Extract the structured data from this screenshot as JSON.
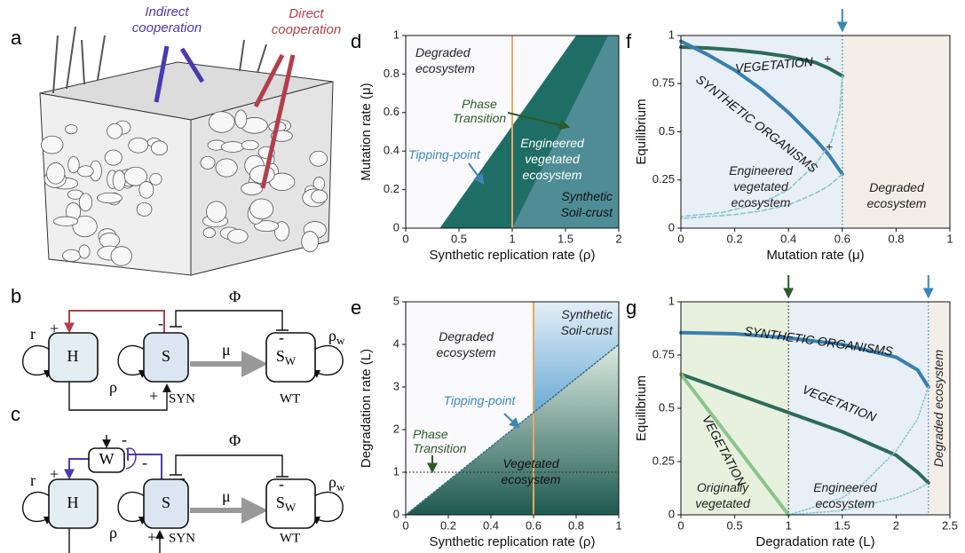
{
  "figure": {
    "a": {
      "label": "a",
      "annotations": [
        {
          "text": [
            "Indirect",
            "cooperation"
          ],
          "color": "#4a3ab0"
        },
        {
          "text": [
            "Direct",
            "cooperation"
          ],
          "color": "#b0404c"
        }
      ]
    },
    "b": {
      "label": "b",
      "nodes": [
        {
          "text": "H"
        },
        {
          "text": "S"
        },
        {
          "text": "S",
          "sub": "W"
        }
      ],
      "labels": {
        "r": "r",
        "rho": "ρ",
        "rho_w": {
          "text": "ρ",
          "sub": "w"
        },
        "phi": "Φ",
        "mu": "μ",
        "syn": "SYN",
        "wt": "WT"
      },
      "signs": [
        "+",
        "+",
        "-",
        "-"
      ]
    },
    "c": {
      "label": "c",
      "nodes": [
        {
          "text": "H"
        },
        {
          "text": "S"
        },
        {
          "text": "S",
          "sub": "W"
        },
        {
          "text": "W"
        }
      ],
      "labels": {
        "r": "r",
        "rho": "ρ",
        "rho_w": {
          "text": "ρ",
          "sub": "w"
        },
        "phi": "Φ",
        "mu": "μ",
        "syn": "SYN",
        "wt": "WT"
      },
      "signs": [
        "+",
        "+",
        "-",
        "-",
        "-",
        "-"
      ]
    }
  },
  "chart_data": [
    {
      "panel": "d",
      "type": "region",
      "xlabel": "Synthetic replication rate (ρ)",
      "ylabel": "Mutation rate (μ)",
      "xlim": [
        0,
        2
      ],
      "ylim": [
        0,
        1
      ],
      "xticks": [
        0,
        0.5,
        1,
        1.5,
        2
      ],
      "yticks": [
        0,
        0.2,
        0.4,
        0.6,
        0.8,
        1
      ],
      "regions": [
        {
          "color": "#1f6e66",
          "x": [
            0.32,
            1.6,
            2,
            2
          ],
          "values": [
            0,
            1,
            1,
            0
          ]
        },
        {
          "color": "#4f8d96",
          "x": [
            1,
            1.9,
            2,
            2
          ],
          "values": [
            0,
            1,
            1,
            0
          ]
        }
      ],
      "vlines": [
        {
          "value": 1,
          "color": "#e9a863",
          "style": "solid"
        }
      ],
      "annotations": [
        {
          "text": [
            "Degraded",
            "ecosystem"
          ],
          "color": "#222222"
        },
        {
          "text": [
            "Phase",
            "Transition"
          ],
          "color": "#2d5a2a"
        },
        {
          "text": [
            "Tipping-point"
          ],
          "color": "#3a86b8"
        },
        {
          "text": [
            "Engineered",
            "vegetated",
            "ecosystem"
          ],
          "color": "#ffffff"
        },
        {
          "text": [
            "Synthetic",
            "Soil-crust"
          ],
          "color": "#111111"
        }
      ]
    },
    {
      "panel": "e",
      "type": "region",
      "xlabel": "Synthetic replication rate (ρ)",
      "ylabel": "Degradation rate (L)",
      "xlim": [
        0,
        1
      ],
      "ylim": [
        0,
        5
      ],
      "xticks": [
        0,
        0.2,
        0.4,
        0.6,
        0.8,
        1
      ],
      "yticks": [
        0,
        1,
        2,
        3,
        4,
        5
      ],
      "regions": [
        {
          "color": "#1d5a50",
          "color2": "#dcebe2",
          "x": [
            0,
            1,
            1
          ],
          "values": [
            0,
            0,
            4
          ]
        },
        {
          "color": "#6aaad4",
          "color2": "#e3eff7",
          "x": [
            0.6,
            1,
            1,
            0.6
          ],
          "values": [
            2.4,
            4,
            5,
            5
          ]
        }
      ],
      "vlines": [
        {
          "value": 0.6,
          "color": "#e9a863",
          "style": "solid"
        }
      ],
      "hlines": [
        {
          "value": 1,
          "color": "#333333",
          "style": "dotted"
        }
      ],
      "series": [
        {
          "color": "#3a6f8f",
          "style": "dotted",
          "x": [
            0,
            1
          ],
          "values": [
            0,
            4
          ]
        }
      ],
      "annotations": [
        {
          "text": [
            "Degraded",
            "ecosystem"
          ],
          "color": "#222222"
        },
        {
          "text": [
            "Synthetic",
            "Soil-crust"
          ],
          "color": "#222222"
        },
        {
          "text": [
            "Tipping-point"
          ],
          "color": "#3a86b8"
        },
        {
          "text": [
            "Phase",
            "Transition"
          ],
          "color": "#2d5a2a"
        },
        {
          "text": [
            "Vegetated",
            "ecosystem"
          ],
          "color": "#111111"
        }
      ]
    },
    {
      "panel": "f",
      "type": "line",
      "xlabel": "Mutation rate (μ)",
      "ylabel": "Equilibrium",
      "xlim": [
        0,
        1
      ],
      "ylim": [
        0,
        1
      ],
      "xticks": [
        0,
        0.2,
        0.4,
        0.6,
        0.8,
        1
      ],
      "yticks": [
        0,
        0.25,
        0.5,
        0.75,
        1
      ],
      "bands": [
        {
          "x": [
            0,
            0.6
          ],
          "color": "#e8eff6"
        },
        {
          "x": [
            0.6,
            1
          ],
          "color": "#f3eee8"
        }
      ],
      "vlines": [
        {
          "value": 0.6,
          "color": "#3a86b8",
          "style": "dotted",
          "arrow_color": "#3a86b8"
        }
      ],
      "series": [
        {
          "color": "#2d6b58",
          "style": "solid",
          "x": [
            0,
            0.1,
            0.2,
            0.3,
            0.4,
            0.5,
            0.55,
            0.6
          ],
          "values": [
            0.94,
            0.935,
            0.925,
            0.91,
            0.89,
            0.86,
            0.83,
            0.79
          ]
        },
        {
          "color": "#3a7fb0",
          "style": "solid",
          "x": [
            0,
            0.1,
            0.2,
            0.3,
            0.4,
            0.5,
            0.55,
            0.6
          ],
          "values": [
            0.97,
            0.9,
            0.82,
            0.72,
            0.6,
            0.46,
            0.38,
            0.28
          ]
        },
        {
          "color": "#8cc6cc",
          "style": "dashed",
          "x": [
            0.6,
            0.59,
            0.56,
            0.5,
            0.4,
            0.3,
            0.15,
            0
          ],
          "values": [
            0.79,
            0.6,
            0.45,
            0.33,
            0.2,
            0.13,
            0.08,
            0.06
          ]
        },
        {
          "color": "#8cc6cc",
          "style": "dashed",
          "x": [
            0.6,
            0.55,
            0.5,
            0.4,
            0.3,
            0.2,
            0
          ],
          "values": [
            0.28,
            0.22,
            0.18,
            0.12,
            0.09,
            0.07,
            0.05
          ]
        }
      ],
      "annotations": [
        {
          "text": [
            "VEGETATION"
          ],
          "color": "#111111"
        },
        {
          "text": [
            "SYNTHETIC ORGANISMS"
          ],
          "color": "#111111"
        },
        {
          "text": [
            "+"
          ],
          "color": "#333333"
        },
        {
          "text": [
            "+"
          ],
          "color": "#333333"
        },
        {
          "text": [
            "Engineered",
            "vegetated",
            "ecosystem"
          ],
          "color": "#222222"
        },
        {
          "text": [
            "Degraded",
            "ecosystem"
          ],
          "color": "#222222"
        }
      ]
    },
    {
      "panel": "g",
      "type": "line",
      "xlabel": "Degradation rate (L)",
      "ylabel": "Equilibrium",
      "xlim": [
        0,
        2.5
      ],
      "ylim": [
        0,
        1
      ],
      "xticks": [
        0,
        0.5,
        1,
        1.5,
        2,
        2.5
      ],
      "yticks": [
        0,
        0.25,
        0.5,
        0.75,
        1
      ],
      "bands": [
        {
          "x": [
            0,
            1
          ],
          "color": "#e7f1dd"
        },
        {
          "x": [
            1,
            2.3
          ],
          "color": "#e8eff6"
        },
        {
          "x": [
            2.3,
            2.5
          ],
          "color": "#f3eee8"
        }
      ],
      "vlines": [
        {
          "value": 1,
          "color": "#333333",
          "style": "dotted",
          "arrow_color": "#2d5a2a"
        },
        {
          "value": 2.3,
          "color": "#3a86b8",
          "style": "dotted",
          "arrow_color": "#3a86b8"
        }
      ],
      "series": [
        {
          "color": "#3a7fb0",
          "style": "solid",
          "x": [
            0,
            0.5,
            1,
            1.5,
            2,
            2.2,
            2.3
          ],
          "values": [
            0.855,
            0.85,
            0.83,
            0.8,
            0.74,
            0.68,
            0.6
          ]
        },
        {
          "color": "#2d6b58",
          "style": "solid",
          "x": [
            0,
            0.5,
            1,
            1.5,
            2,
            2.2,
            2.3
          ],
          "values": [
            0.66,
            0.57,
            0.48,
            0.39,
            0.28,
            0.2,
            0.15
          ]
        },
        {
          "color": "#8cc48c",
          "style": "solid",
          "x": [
            0,
            1
          ],
          "values": [
            0.66,
            0
          ]
        },
        {
          "color": "#8cc6cc",
          "style": "dotted",
          "x": [
            1,
            1.5,
            2,
            2.2,
            2.3
          ],
          "values": [
            0,
            0.02,
            0.08,
            0.12,
            0.15
          ]
        },
        {
          "color": "#8cc6cc",
          "style": "dotted",
          "x": [
            2.3,
            2.2,
            2,
            1.7,
            1.5,
            1.2,
            1
          ],
          "values": [
            0.6,
            0.45,
            0.3,
            0.15,
            0.08,
            0.03,
            0
          ]
        }
      ],
      "annotations": [
        {
          "text": [
            "SYNTHETIC ORGANISMS"
          ],
          "color": "#111111"
        },
        {
          "text": [
            "VEGETATION"
          ],
          "color": "#111111"
        },
        {
          "text": [
            "VEGETATION"
          ],
          "color": "#111111"
        },
        {
          "text": [
            "Originally",
            "vegetated"
          ],
          "color": "#222222"
        },
        {
          "text": [
            "Engineered",
            "ecosystem"
          ],
          "color": "#222222"
        },
        {
          "text": [
            "Degraded ecosystem"
          ],
          "color": "#222222"
        }
      ]
    }
  ]
}
